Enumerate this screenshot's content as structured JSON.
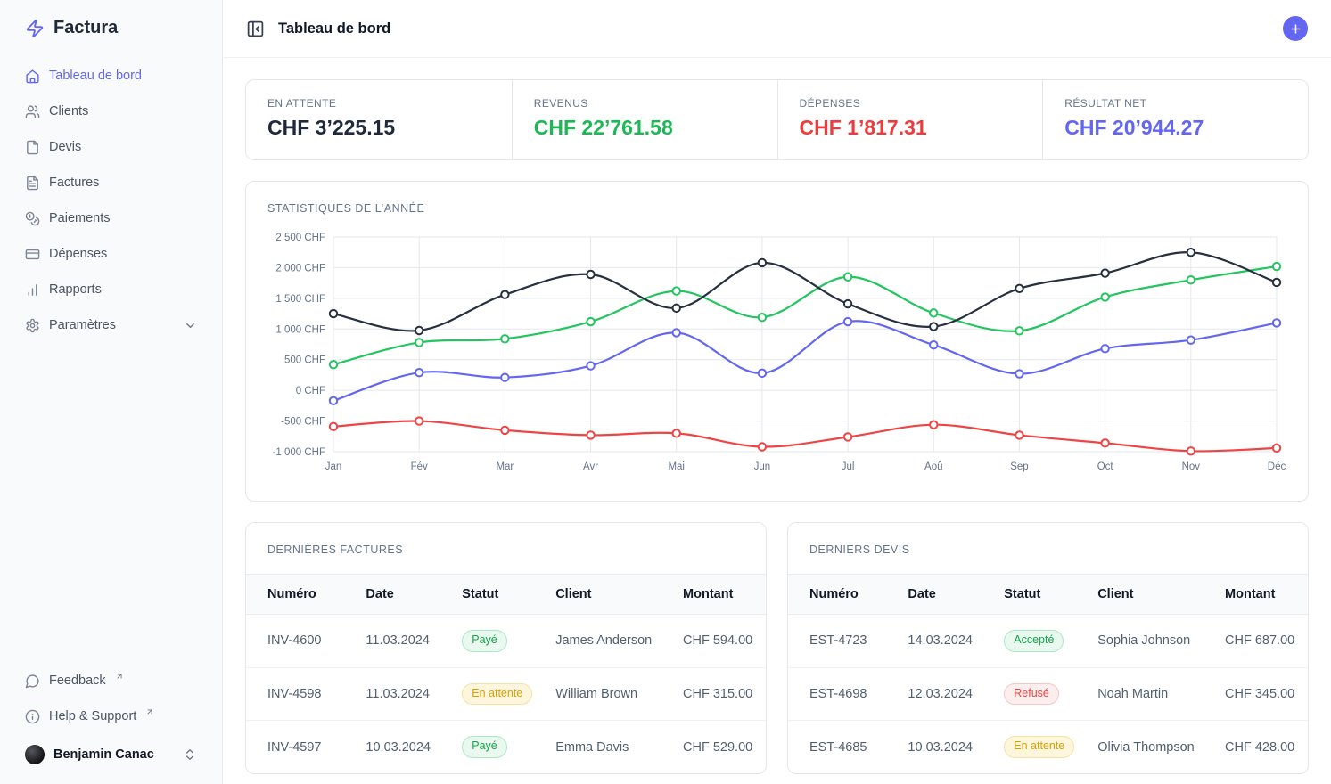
{
  "app": {
    "name": "Factura"
  },
  "header": {
    "title": "Tableau de bord"
  },
  "sidebar": {
    "items": [
      {
        "label": "Tableau de bord",
        "icon": "home-icon",
        "active": true
      },
      {
        "label": "Clients",
        "icon": "users-icon",
        "active": false
      },
      {
        "label": "Devis",
        "icon": "file-icon",
        "active": false
      },
      {
        "label": "Factures",
        "icon": "file-text-icon",
        "active": false
      },
      {
        "label": "Paiements",
        "icon": "coins-icon",
        "active": false
      },
      {
        "label": "Dépenses",
        "icon": "credit-card-icon",
        "active": false
      },
      {
        "label": "Rapports",
        "icon": "bar-chart-icon",
        "active": false
      },
      {
        "label": "Paramètres",
        "icon": "settings-icon",
        "active": false,
        "trailing_icon": "chevron-down-icon"
      }
    ],
    "footer_items": [
      {
        "label": "Feedback",
        "icon": "message-circle-icon",
        "external": true
      },
      {
        "label": "Help & Support",
        "icon": "info-icon",
        "external": true
      }
    ],
    "user": {
      "name": "Benjamin Canac"
    }
  },
  "stats": [
    {
      "label": "EN ATTENTE",
      "value": "CHF 3’225.15",
      "color": "#1e293b"
    },
    {
      "label": "REVENUS",
      "value": "CHF 22’761.58",
      "color": "#1cb854"
    },
    {
      "label": "DÉPENSES",
      "value": "CHF 1’817.31",
      "color": "#ee3b3b"
    },
    {
      "label": "RÉSULTAT NET",
      "value": "CHF 20’944.27",
      "color": "#6366f1"
    }
  ],
  "chart_data": {
    "type": "line",
    "title": "STATISTIQUES DE L’ANNÉE",
    "x": [
      "Jan",
      "Fév",
      "Mar",
      "Avr",
      "Mai",
      "Jun",
      "Jul",
      "Aoû",
      "Sep",
      "Oct",
      "Nov",
      "Déc"
    ],
    "ylim": [
      -1000,
      2500
    ],
    "y_ticks": [
      2500,
      2000,
      1500,
      1000,
      500,
      0,
      -500,
      -1000
    ],
    "y_tick_labels": [
      "2 500 CHF",
      "2 000 CHF",
      "1 500 CHF",
      "1 000 CHF",
      "500 CHF",
      "0 CHF",
      "-500 CHF",
      "-1 000 CHF"
    ],
    "grid": true,
    "legend": false,
    "marker": "open-circle",
    "series": [
      {
        "name": "dark",
        "color": "#26303f",
        "values": [
          1250,
          975,
          1560,
          1890,
          1340,
          2080,
          1410,
          1040,
          1660,
          1910,
          2250,
          1760
        ]
      },
      {
        "name": "green",
        "color": "#22c55e",
        "values": [
          420,
          780,
          840,
          1120,
          1620,
          1190,
          1850,
          1260,
          970,
          1520,
          1800,
          2020
        ]
      },
      {
        "name": "indigo",
        "color": "#6366f1",
        "values": [
          -170,
          290,
          210,
          400,
          940,
          280,
          1120,
          740,
          270,
          680,
          820,
          1100
        ]
      },
      {
        "name": "red",
        "color": "#ef4444",
        "values": [
          -590,
          -500,
          -650,
          -730,
          -700,
          -920,
          -760,
          -560,
          -730,
          -860,
          -990,
          -940
        ]
      }
    ]
  },
  "tables": [
    {
      "title": "DERNIÈRES FACTURES",
      "columns": [
        "Numéro",
        "Date",
        "Statut",
        "Client",
        "Montant"
      ],
      "rows": [
        [
          "INV-4600",
          "11.03.2024",
          "Payé",
          "James Anderson",
          "CHF 594.00"
        ],
        [
          "INV-4598",
          "11.03.2024",
          "En attente",
          "William Brown",
          "CHF 315.00"
        ],
        [
          "INV-4597",
          "10.03.2024",
          "Payé",
          "Emma Davis",
          "CHF 529.00"
        ]
      ]
    },
    {
      "title": "DERNIERS DEVIS",
      "columns": [
        "Numéro",
        "Date",
        "Statut",
        "Client",
        "Montant"
      ],
      "rows": [
        [
          "EST-4723",
          "14.03.2024",
          "Accepté",
          "Sophia Johnson",
          "CHF 687.00"
        ],
        [
          "EST-4698",
          "12.03.2024",
          "Refusé",
          "Noah Martin",
          "CHF 345.00"
        ],
        [
          "EST-4685",
          "10.03.2024",
          "En attente",
          "Olivia Thompson",
          "CHF 428.00"
        ]
      ]
    }
  ],
  "status_styles": {
    "Payé": "green",
    "Accepté": "green",
    "En attente": "yellow",
    "Refusé": "red"
  }
}
